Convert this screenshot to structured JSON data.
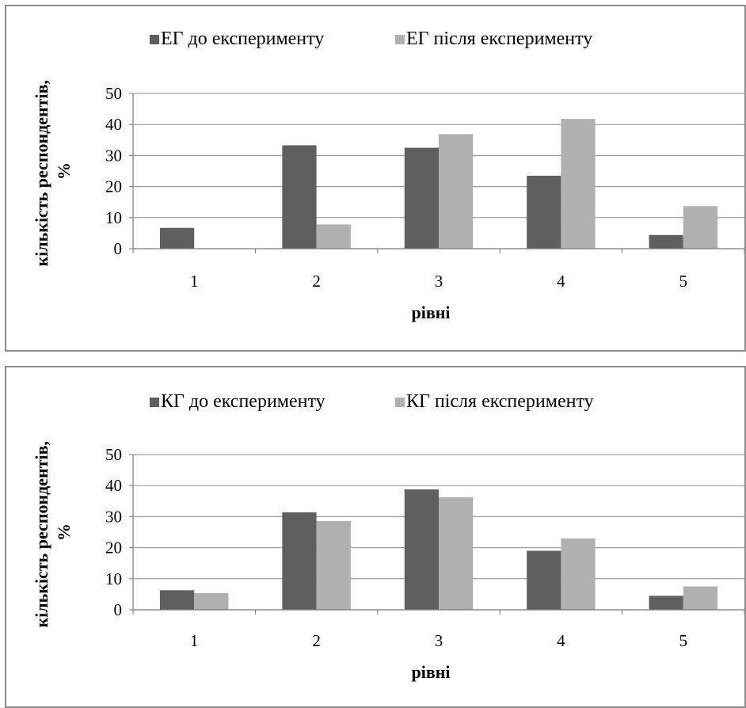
{
  "chart_data": [
    {
      "type": "bar",
      "categories": [
        "1",
        "2",
        "3",
        "4",
        "5"
      ],
      "series": [
        {
          "name": "ЕГ до експерименту",
          "values": [
            6.7,
            33.3,
            32.5,
            23.5,
            4.4
          ],
          "color": "#5f5f5f"
        },
        {
          "name": "ЕГ після експерименту",
          "values": [
            0,
            7.8,
            36.9,
            41.8,
            13.7
          ],
          "color": "#b0b0b0"
        }
      ],
      "xlabel": "рівні",
      "ylabel": "кількість респондентів, %",
      "ylim": [
        0,
        50
      ],
      "yticks": [
        "0",
        "10",
        "20",
        "30",
        "40",
        "50"
      ],
      "grid": true,
      "legend": "top"
    },
    {
      "type": "bar",
      "categories": [
        "1",
        "2",
        "3",
        "4",
        "5"
      ],
      "series": [
        {
          "name": "КГ до експерименту",
          "values": [
            6.3,
            31.4,
            38.8,
            19.0,
            4.5
          ],
          "color": "#5f5f5f"
        },
        {
          "name": "КГ після експерименту",
          "values": [
            5.4,
            28.6,
            36.3,
            23.0,
            7.5
          ],
          "color": "#b0b0b0"
        }
      ],
      "xlabel": "рівні",
      "ylabel": "кількість респондентів, %",
      "ylim": [
        0,
        50
      ],
      "yticks": [
        "0",
        "10",
        "20",
        "30",
        "40",
        "50"
      ],
      "grid": true,
      "legend": "top"
    }
  ]
}
